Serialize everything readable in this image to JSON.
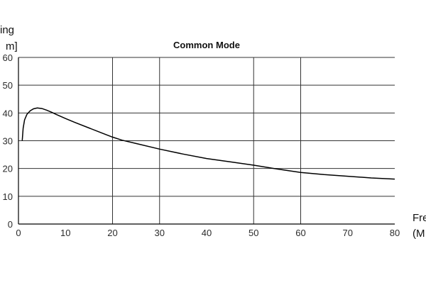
{
  "chart_data": {
    "type": "line",
    "title": "Common Mode",
    "ylabel_fragments": [
      "ing",
      "m]"
    ],
    "xlabel_fragments": [
      "Fre",
      "(M"
    ],
    "x_ticks": [
      "0",
      "10",
      "20",
      "30",
      "40",
      "50",
      "60",
      "70",
      "80"
    ],
    "y_ticks": [
      "0",
      "10",
      "20",
      "30",
      "40",
      "50",
      "60"
    ],
    "xlim": [
      0,
      80
    ],
    "ylim": [
      0,
      60
    ],
    "grid": {
      "horizontal": true,
      "vertical_at": [
        20,
        30,
        50,
        60
      ]
    },
    "series": [
      {
        "x": [
          0.8,
          1.0,
          1.3,
          1.8,
          2.5,
          3.2,
          4.0,
          5.0,
          6.0,
          7.0,
          8.0,
          10.0,
          12.0,
          15.0,
          18.0,
          20.0,
          22.0,
          25.0,
          30.0,
          35.0,
          40.0,
          45.0,
          50.0,
          55.0,
          60.0,
          65.0,
          70.0,
          75.0,
          80.0
        ],
        "y": [
          30.0,
          34.5,
          37.5,
          39.5,
          40.8,
          41.5,
          41.8,
          41.6,
          41.0,
          40.3,
          39.5,
          38.0,
          36.6,
          34.6,
          32.6,
          31.3,
          30.2,
          29.0,
          27.0,
          25.2,
          23.6,
          22.4,
          21.2,
          19.8,
          18.6,
          17.8,
          17.2,
          16.6,
          16.2
        ]
      }
    ],
    "line_color": "#000000",
    "grid_color": "#333333"
  }
}
